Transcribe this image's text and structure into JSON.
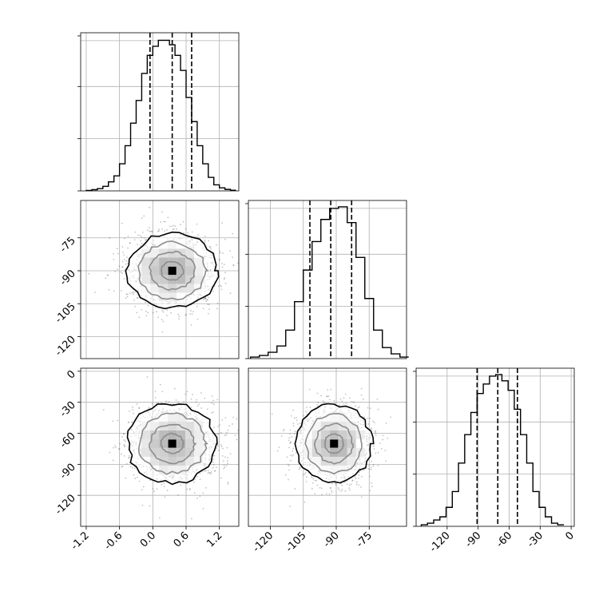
{
  "figure": {
    "kind": "corner-plot"
  },
  "chart_data": [
    {
      "type": "histogram",
      "panel": "diag-0",
      "variable_index": 0,
      "xlim": [
        -1.3,
        1.55
      ],
      "bins_center": [
        -1.15,
        -1.05,
        -0.95,
        -0.85,
        -0.75,
        -0.65,
        -0.55,
        -0.45,
        -0.35,
        -0.25,
        -0.15,
        -0.05,
        0.05,
        0.15,
        0.25,
        0.35,
        0.45,
        0.55,
        0.65,
        0.75,
        0.85,
        0.95,
        1.05,
        1.15,
        1.25,
        1.35,
        1.45
      ],
      "counts": [
        0.3,
        0.8,
        1.5,
        3,
        6,
        10,
        18,
        30,
        45,
        60,
        78,
        90,
        96,
        100,
        100,
        97,
        90,
        80,
        62,
        46,
        30,
        18,
        9,
        4,
        2,
        1,
        0.4
      ],
      "quantiles": [
        -0.05,
        0.35,
        0.7
      ],
      "ylim": [
        0,
        105
      ],
      "yticks_count": 4
    },
    {
      "type": "histogram",
      "panel": "diag-1",
      "variable_index": 1,
      "xlim": [
        -130,
        -58
      ],
      "bins_center": [
        -127,
        -123,
        -119,
        -115,
        -111,
        -107,
        -103,
        -99,
        -95,
        -91,
        -87,
        -83,
        -79,
        -75,
        -71,
        -67,
        -63,
        -59
      ],
      "counts": [
        1,
        2,
        4,
        8,
        18,
        36,
        56,
        74,
        88,
        95,
        96,
        86,
        64,
        38,
        18,
        7,
        3,
        1
      ],
      "quantiles": [
        -102,
        -92.5,
        -83
      ],
      "ylim": [
        0,
        100
      ],
      "yticks_count": 4
    },
    {
      "type": "histogram",
      "panel": "diag-2",
      "variable_index": 2,
      "xlim": [
        -150,
        3
      ],
      "bins_center": [
        -142,
        -136,
        -130,
        -124,
        -118,
        -112,
        -106,
        -100,
        -94,
        -88,
        -82,
        -76,
        -70,
        -64,
        -58,
        -52,
        -46,
        -40,
        -34,
        -28,
        -22,
        -16,
        -10
      ],
      "counts": [
        1,
        2,
        4,
        6,
        12,
        22,
        40,
        58,
        72,
        84,
        90,
        95,
        96,
        92,
        86,
        74,
        58,
        40,
        22,
        12,
        6,
        2,
        1
      ],
      "quantiles": [
        -91,
        -71,
        -52
      ],
      "ylim": [
        0,
        100
      ],
      "yticks_count": 4
    },
    {
      "type": "scatter-contour",
      "panel": "offdiag-1-0",
      "x_index": 0,
      "y_index": 1,
      "xlim": [
        -1.3,
        1.55
      ],
      "ylim": [
        -130,
        -58
      ],
      "center": [
        0.35,
        -90
      ],
      "spread": [
        0.4,
        8.5
      ],
      "contour_levels": [
        0.5,
        1.0,
        1.5,
        2.0
      ],
      "yticks": [
        "-75",
        "-90",
        "-105",
        "-120"
      ]
    },
    {
      "type": "scatter-contour",
      "panel": "offdiag-2-0",
      "x_index": 0,
      "y_index": 2,
      "xlim": [
        -1.3,
        1.55
      ],
      "ylim": [
        -150,
        3
      ],
      "center": [
        0.35,
        -70
      ],
      "spread": [
        0.4,
        19
      ],
      "contour_levels": [
        0.5,
        1.0,
        1.5,
        2.0
      ],
      "yticks": [
        "0",
        "-30",
        "-60",
        "-90",
        "-120"
      ]
    },
    {
      "type": "scatter-contour",
      "panel": "offdiag-2-1",
      "x_index": 1,
      "y_index": 2,
      "xlim": [
        -130,
        -58
      ],
      "ylim": [
        -150,
        3
      ],
      "center": [
        -91,
        -70
      ],
      "spread": [
        8.5,
        19
      ],
      "contour_levels": [
        0.5,
        1.0,
        1.5,
        2.0
      ]
    }
  ],
  "axes": {
    "x0_ticks": [
      "-1.2",
      "-0.6",
      "0.0",
      "0.6",
      "1.2"
    ],
    "x1_ticks": [
      "-120",
      "-105",
      "-90",
      "-75"
    ],
    "x2_ticks": [
      "-120",
      "-90",
      "-60",
      "-30",
      "0"
    ],
    "y1_ticks": [
      "-75",
      "-90",
      "-105",
      "-120"
    ],
    "y2_ticks": [
      "0",
      "-30",
      "-60",
      "-90",
      "-120"
    ]
  },
  "colors": {
    "line": "#000000",
    "grid": "#b0b0b0",
    "scatter": "#555555",
    "frame": "#000000",
    "fill_dark": "#000000"
  }
}
